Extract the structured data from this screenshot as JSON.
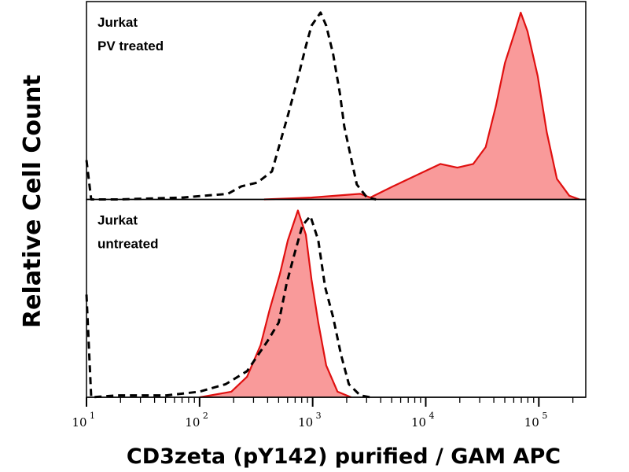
{
  "chart_data": {
    "type": "area",
    "xlabel": "CD3zeta (pY142) purified / GAM APC",
    "ylabel": "Relative Cell Count",
    "x_scale": "log",
    "xlim": [
      10,
      260000
    ],
    "ylim": [
      0,
      100
    ],
    "grid": false,
    "x_ticks": [
      {
        "value": 10,
        "base": "10",
        "exp": "1"
      },
      {
        "value": 100,
        "base": "10",
        "exp": "2"
      },
      {
        "value": 1000,
        "base": "10",
        "exp": "3"
      },
      {
        "value": 10000,
        "base": "10",
        "exp": "4"
      },
      {
        "value": 100000,
        "base": "10",
        "exp": "5"
      }
    ],
    "colors": {
      "stained": "#e01010",
      "stained_fill": "#f99a9a",
      "control": "#000000"
    },
    "panels": [
      {
        "label_lines": [
          "Jurkat",
          "PV treated"
        ],
        "series": [
          {
            "style": "dashed-black",
            "points": [
              [
                10,
                21
              ],
              [
                11,
                0
              ],
              [
                19,
                0
              ],
              [
                71,
                1
              ],
              [
                178,
                3
              ],
              [
                234,
                7
              ],
              [
                324,
                9
              ],
              [
                437,
                15
              ],
              [
                513,
                30
              ],
              [
                617,
                47
              ],
              [
                741,
                65
              ],
              [
                871,
                82
              ],
              [
                977,
                93
              ],
              [
                1175,
                100
              ],
              [
                1318,
                93
              ],
              [
                1514,
                78
              ],
              [
                1738,
                57
              ],
              [
                1905,
                39
              ],
              [
                2188,
                22
              ],
              [
                2455,
                8
              ],
              [
                3020,
                1
              ],
              [
                3631,
                0
              ]
            ]
          },
          {
            "style": "red-filled",
            "points": [
              [
                372,
                0
              ],
              [
                977,
                1
              ],
              [
                2630,
                3
              ],
              [
                3236,
                1
              ],
              [
                5129,
                7
              ],
              [
                7079,
                11
              ],
              [
                9772,
                15
              ],
              [
                13490,
                19
              ],
              [
                19050,
                17
              ],
              [
                26300,
                19
              ],
              [
                33880,
                28
              ],
              [
                41690,
                50
              ],
              [
                50120,
                73
              ],
              [
                61660,
                90
              ],
              [
                69180,
                100
              ],
              [
                79430,
                90
              ],
              [
                97720,
                66
              ],
              [
                117500,
                36
              ],
              [
                144500,
                11
              ],
              [
                186200,
                2
              ],
              [
                229100,
                0
              ]
            ]
          }
        ]
      },
      {
        "label_lines": [
          "Jurkat",
          "untreated"
        ],
        "series": [
          {
            "style": "dashed-black",
            "points": [
              [
                10,
                55
              ],
              [
                11,
                0
              ],
              [
                19,
                1
              ],
              [
                51,
                1
              ],
              [
                100,
                3
              ],
              [
                170,
                7
              ],
              [
                263,
                14
              ],
              [
                398,
                30
              ],
              [
                501,
                40
              ],
              [
                589,
                61
              ],
              [
                692,
                77
              ],
              [
                813,
                92
              ],
              [
                955,
                97
              ],
              [
                1122,
                84
              ],
              [
                1288,
                59
              ],
              [
                1514,
                43
              ],
              [
                1778,
                23
              ],
              [
                2089,
                7
              ],
              [
                2630,
                1
              ],
              [
                3236,
                0
              ]
            ]
          },
          {
            "style": "red-filled",
            "points": [
              [
                100,
                0
              ],
              [
                191,
                3
              ],
              [
                263,
                11
              ],
              [
                347,
                28
              ],
              [
                417,
                47
              ],
              [
                513,
                66
              ],
              [
                603,
                84
              ],
              [
                741,
                100
              ],
              [
                871,
                87
              ],
              [
                977,
                63
              ],
              [
                1122,
                40
              ],
              [
                1318,
                17
              ],
              [
                1660,
                3
              ],
              [
                2188,
                0
              ]
            ]
          }
        ]
      }
    ]
  }
}
